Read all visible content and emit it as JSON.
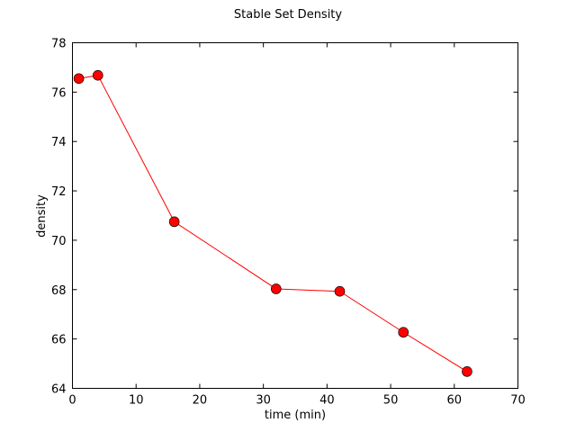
{
  "chart_data": {
    "type": "line",
    "title": "Stable Set Density",
    "xlabel": "time (min)",
    "ylabel": "density",
    "xlim": [
      0,
      70
    ],
    "ylim": [
      64,
      78
    ],
    "xticks": [
      0,
      10,
      20,
      30,
      40,
      50,
      60,
      70
    ],
    "yticks": [
      64,
      66,
      68,
      70,
      72,
      74,
      76,
      78
    ],
    "grid": false,
    "legend": "none",
    "series": [
      {
        "color": "#ff0000",
        "marker": "circle",
        "x": [
          1,
          4,
          16,
          32,
          42,
          52,
          62
        ],
        "y": [
          76.55,
          76.68,
          70.75,
          68.03,
          67.93,
          66.27,
          64.68
        ]
      }
    ]
  }
}
